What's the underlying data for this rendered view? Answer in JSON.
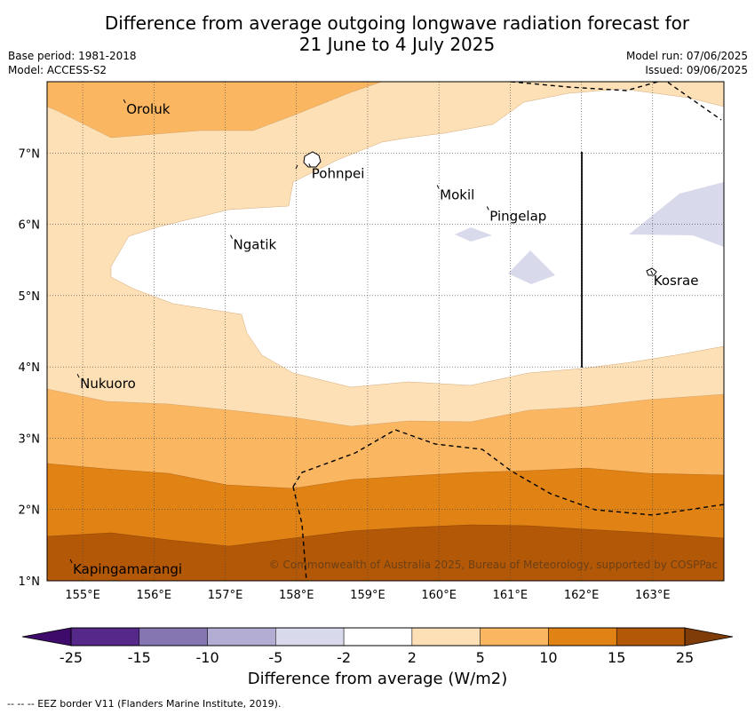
{
  "title_line1": "Difference from average outgoing longwave radiation forecast for",
  "title_line2": "21 June to 4 July 2025",
  "meta_left": {
    "base_period": "Base period: 1981-2018",
    "model": "Model: ACCESS-S2"
  },
  "meta_right": {
    "model_run": "Model run: 07/06/2025",
    "issued": "Issued: 09/06/2025"
  },
  "axes": {
    "lon_labels": [
      "155°E",
      "156°E",
      "157°E",
      "158°E",
      "159°E",
      "160°E",
      "161°E",
      "162°E",
      "163°E"
    ],
    "lat_labels": [
      "7°N",
      "6°N",
      "5°N",
      "4°N",
      "3°N",
      "2°N",
      "1°N"
    ],
    "lon_range": [
      154.5,
      164
    ],
    "lat_range": [
      1,
      8
    ]
  },
  "places": [
    {
      "name": "Oroluk",
      "lon": 155.6,
      "lat": 7.7
    },
    {
      "name": "Pohnpei",
      "lon": 158.2,
      "lat": 6.8
    },
    {
      "name": "Mokil",
      "lon": 160.0,
      "lat": 6.5
    },
    {
      "name": "Pingelap",
      "lon": 160.7,
      "lat": 6.2
    },
    {
      "name": "Ngatik",
      "lon": 157.1,
      "lat": 5.8
    },
    {
      "name": "Kosrae",
      "lon": 163.0,
      "lat": 5.3
    },
    {
      "name": "Nukuoro",
      "lon": 154.95,
      "lat": 3.85
    },
    {
      "name": "Kapingamarangi",
      "lon": 154.85,
      "lat": 1.25
    }
  ],
  "copyright": "© Commonwealth of Australia 2025, Bureau of Meteorology, supported by COSPPac",
  "colorbar": {
    "title": "Difference from average (W/m2)",
    "ticks": [
      "-25",
      "-15",
      "-10",
      "-5",
      "-2",
      "2",
      "5",
      "10",
      "15",
      "25"
    ],
    "colors": [
      "#3f0b6b",
      "#55288a",
      "#8575b0",
      "#b3acd3",
      "#d9d9ec",
      "#ffffff",
      "#fde0b6",
      "#fbb662",
      "#e08214",
      "#b35806",
      "#7f3b08"
    ]
  },
  "footnote": "--  --  -- EEZ border V11 (Flanders Marine Institute, 2019)."
}
